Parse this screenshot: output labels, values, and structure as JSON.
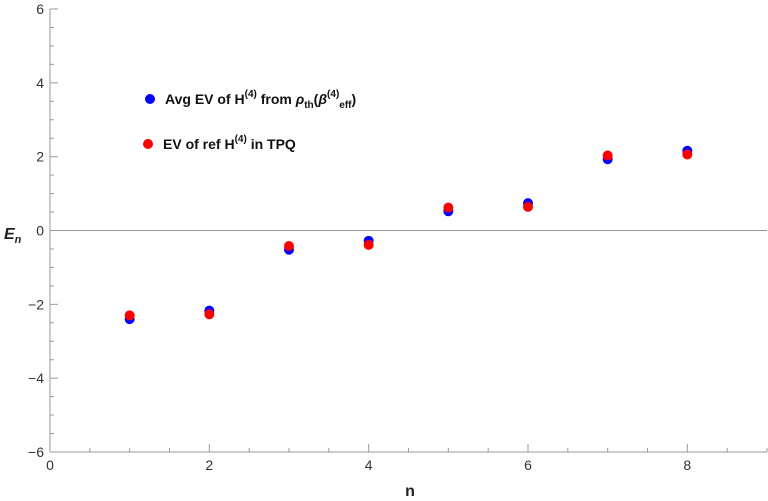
{
  "chart_data": {
    "type": "scatter",
    "title": "",
    "xlabel": "n",
    "ylabel_main": "E",
    "ylabel_sub": "n",
    "xlim": [
      0,
      9
    ],
    "ylim": [
      -6,
      6
    ],
    "x_ticks": [
      0,
      2,
      4,
      6,
      8
    ],
    "x_tick_labels": [
      "0",
      "2",
      "4",
      "6",
      "8"
    ],
    "y_ticks": [
      -6,
      -4,
      -2,
      0,
      2,
      4,
      6
    ],
    "y_tick_labels": [
      "−6",
      "−4",
      "−2",
      "0",
      "2",
      "4",
      "6"
    ],
    "grid": false,
    "legend_position": "top-left",
    "series": [
      {
        "legend_parts": [
          "Avg EV of H",
          "(4)",
          " from ",
          "ρ",
          "th",
          "(",
          "β",
          "(4)",
          "eff",
          ")"
        ],
        "color": "#0000ff",
        "x": [
          1,
          2,
          3,
          4,
          5,
          6,
          7,
          8
        ],
        "y": [
          -2.4,
          -2.17,
          -0.52,
          -0.28,
          0.52,
          0.74,
          1.93,
          2.16
        ]
      },
      {
        "legend_parts": [
          "EV of ref H",
          "(4)",
          " in TPQ"
        ],
        "color": "#ff0000",
        "x": [
          1,
          2,
          3,
          4,
          5,
          6,
          7,
          8
        ],
        "y": [
          -2.3,
          -2.27,
          -0.42,
          -0.39,
          0.62,
          0.64,
          2.03,
          2.06
        ]
      }
    ]
  }
}
